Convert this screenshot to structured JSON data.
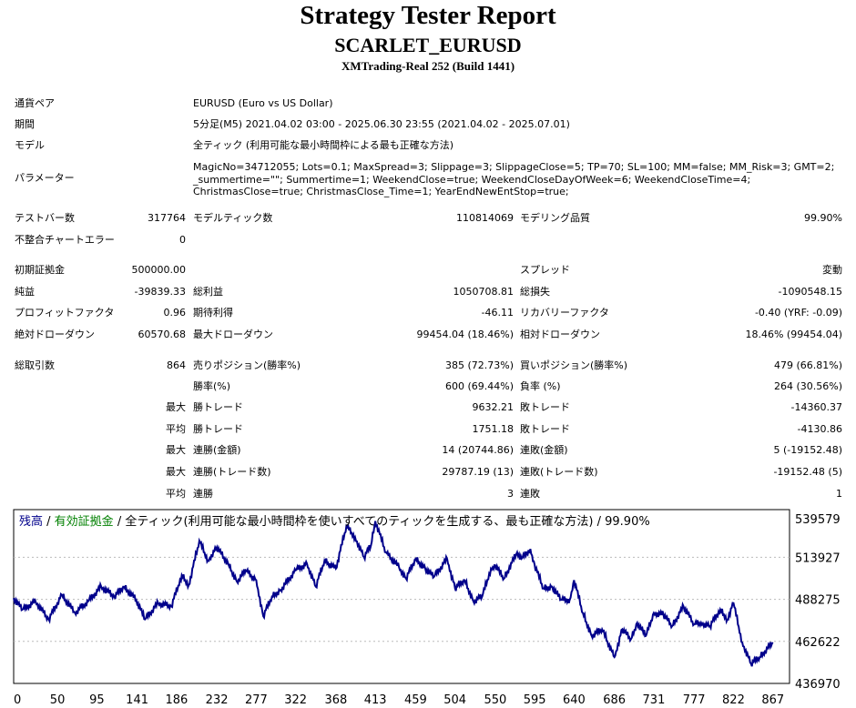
{
  "header": {
    "title": "Strategy Tester Report",
    "ea_name": "SCARLET_EURUSD",
    "server": "XMTrading-Real 252 (Build 1441)"
  },
  "info": {
    "symbol_label": "通貨ペア",
    "symbol_value": "EURUSD (Euro vs US Dollar)",
    "period_label": "期間",
    "period_value": "5分足(M5) 2021.04.02 03:00 - 2025.06.30 23:55 (2021.04.02 - 2025.07.01)",
    "model_label": "モデル",
    "model_value": "全ティック (利用可能な最小時間枠による最も正確な方法)",
    "params_label": "パラメーター",
    "params_value": "MagicNo=34712055; Lots=0.1; MaxSpread=3; Slippage=3; SlippageClose=5; TP=70; SL=100; MM=false; MM_Risk=3; GMT=2; _summertime=\"\"; Summertime=1; WeekendClose=true; WeekendCloseDayOfWeek=6; WeekendCloseTime=4; ChristmasClose=true; ChristmasClose_Time=1; YearEndNewEntStop=true;"
  },
  "stats": {
    "bars_label": "テストバー数",
    "bars_value": "317764",
    "ticks_label": "モデルティック数",
    "ticks_value": "110814069",
    "quality_label": "モデリング品質",
    "quality_value": "99.90%",
    "mismatch_label": "不整合チャートエラー",
    "mismatch_value": "0",
    "deposit_label": "初期証拠金",
    "deposit_value": "500000.00",
    "spread_label": "スプレッド",
    "spread_value": "変動",
    "net_label": "純益",
    "net_value": "-39839.33",
    "gross_profit_label": "総利益",
    "gross_profit_value": "1050708.81",
    "gross_loss_label": "総損失",
    "gross_loss_value": "-1090548.15",
    "pf_label": "プロフィットファクタ",
    "pf_value": "0.96",
    "expected_label": "期待利得",
    "expected_value": "-46.11",
    "recovery_label": "リカバリーファクタ",
    "recovery_value": "-0.40 (YRF: -0.09)",
    "abs_dd_label": "絶対ドローダウン",
    "abs_dd_value": "60570.68",
    "max_dd_label": "最大ドローダウン",
    "max_dd_value": "99454.04 (18.46%)",
    "rel_dd_label": "相対ドローダウン",
    "rel_dd_value": "18.46% (99454.04)",
    "trades_label": "総取引数",
    "trades_value": "864",
    "short_label": "売りポジション(勝率%)",
    "short_value": "385 (72.73%)",
    "long_label": "買いポジション(勝率%)",
    "long_value": "479 (66.81%)",
    "win_rate_label": "勝率(%)",
    "win_rate_value": "600 (69.44%)",
    "loss_rate_label": "負率 (%)",
    "loss_rate_value": "264 (30.56%)",
    "max_prefix": "最大",
    "avg_prefix": "平均",
    "largest_win_label": "勝トレード",
    "largest_win_value": "9632.21",
    "largest_loss_label": "敗トレード",
    "largest_loss_value": "-14360.37",
    "avg_win_label": "勝トレード",
    "avg_win_value": "1751.18",
    "avg_loss_label": "敗トレード",
    "avg_loss_value": "-4130.86",
    "max_cons_wins_label": "連勝(金額)",
    "max_cons_wins_value": "14 (20744.86)",
    "max_cons_losses_label": "連敗(金額)",
    "max_cons_losses_value": "5 (-19152.48)",
    "max_cons_profit_label": "連勝(トレード数)",
    "max_cons_profit_value": "29787.19 (13)",
    "max_cons_loss_label": "連敗(トレード数)",
    "max_cons_loss_value": "-19152.48 (5)",
    "avg_cons_wins_label": "連勝",
    "avg_cons_wins_value": "3",
    "avg_cons_losses_label": "連敗",
    "avg_cons_losses_value": "1"
  },
  "chart_data": {
    "type": "line",
    "legend": {
      "balance": "残高",
      "sep1": " / ",
      "equity": "有効証拠金",
      "rest": " / 全ティック(利用可能な最小時間枠を使いすべてのティックを生成する、最も正確な方法) / 99.90%"
    },
    "balance_color": "#00008b",
    "equity_color": "#008000",
    "x_ticks": [
      0,
      50,
      95,
      141,
      186,
      232,
      277,
      322,
      368,
      413,
      459,
      504,
      550,
      595,
      640,
      686,
      731,
      777,
      822,
      867
    ],
    "y_ticks": [
      539579,
      513927,
      488275,
      462622,
      436970
    ],
    "xlim": [
      0,
      886
    ],
    "ylim": [
      436970,
      543000
    ],
    "series": [
      {
        "name": "残高",
        "x": [
          0,
          10,
          25,
          40,
          55,
          70,
          85,
          100,
          115,
          126,
          140,
          150,
          165,
          180,
          192,
          200,
          212,
          222,
          232,
          245,
          255,
          265,
          277,
          285,
          295,
          305,
          322,
          335,
          345,
          355,
          368,
          380,
          390,
          400,
          408,
          413,
          425,
          440,
          448,
          459,
          470,
          480,
          495,
          504,
          515,
          525,
          535,
          545,
          550,
          560,
          575,
          580,
          590,
          595,
          605,
          615,
          625,
          635,
          640,
          650,
          660,
          672,
          686,
          695,
          705,
          712,
          722,
          731,
          742,
          752,
          765,
          777,
          785,
          795,
          807,
          815,
          822,
          832,
          842,
          852,
          867
        ],
        "y": [
          489000,
          482000,
          487000,
          476000,
          491000,
          480000,
          487000,
          496000,
          490000,
          496000,
          488000,
          476000,
          486000,
          484000,
          503000,
          497000,
          524000,
          512000,
          520000,
          510000,
          499000,
          506000,
          500000,
          478000,
          490000,
          494000,
          506000,
          510000,
          496000,
          512000,
          507000,
          533000,
          526000,
          514000,
          521000,
          536000,
          517000,
          508000,
          501000,
          513000,
          507000,
          502000,
          513000,
          495000,
          500000,
          487000,
          490000,
          507000,
          509000,
          501000,
          517000,
          513000,
          519000,
          509000,
          495000,
          496000,
          488000,
          488000,
          500000,
          480000,
          466000,
          470000,
          453000,
          470000,
          464000,
          474000,
          466000,
          480000,
          479000,
          472000,
          484000,
          473000,
          474000,
          472000,
          482000,
          476000,
          486000,
          462000,
          449000,
          453000,
          462000
        ]
      }
    ]
  }
}
